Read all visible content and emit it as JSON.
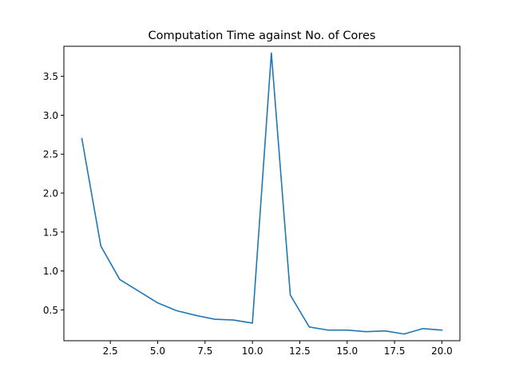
{
  "chart_data": {
    "type": "line",
    "title": "Computation Time against No. of Cores",
    "xlabel": "",
    "ylabel": "",
    "xlim": [
      0.05,
      20.95
    ],
    "ylim": [
      0.104,
      3.886
    ],
    "xticks": [
      2.5,
      5.0,
      7.5,
      10.0,
      12.5,
      15.0,
      17.5,
      20.0
    ],
    "xtick_labels": [
      "2.5",
      "5.0",
      "7.5",
      "10.0",
      "12.5",
      "15.0",
      "17.5",
      "20.0"
    ],
    "yticks": [
      0.5,
      1.0,
      1.5,
      2.0,
      2.5,
      3.0,
      3.5
    ],
    "ytick_labels": [
      "0.5",
      "1.0",
      "1.5",
      "2.0",
      "2.5",
      "3.0",
      "3.5"
    ],
    "grid": false,
    "series": [
      {
        "color": "#1f77b4",
        "x": [
          1,
          2,
          3,
          4,
          5,
          6,
          7,
          8,
          9,
          10,
          11,
          12,
          13,
          14,
          15,
          16,
          17,
          18,
          19,
          20
        ],
        "values": [
          2.7,
          1.32,
          0.89,
          0.74,
          0.59,
          0.49,
          0.43,
          0.38,
          0.37,
          0.33,
          3.8,
          0.69,
          0.28,
          0.24,
          0.24,
          0.22,
          0.23,
          0.19,
          0.26,
          0.24
        ]
      }
    ]
  }
}
